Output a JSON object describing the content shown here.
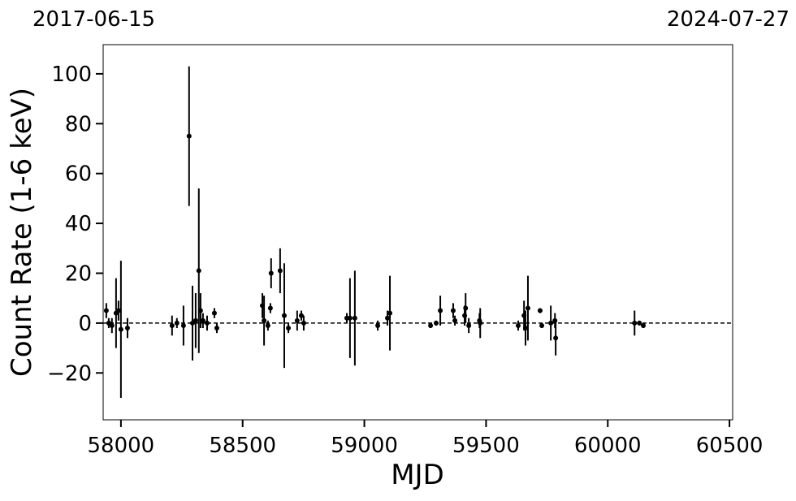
{
  "chart_data": {
    "type": "scatter",
    "top_labels": [
      "2017-06-15",
      "2024-07-27"
    ],
    "xlabel": "MJD",
    "ylabel": "Count Rate (1-6 keV)",
    "color": "#000000",
    "hline": 0,
    "xlim": [
      57927,
      60513
    ],
    "ylim": [
      -38.8,
      111.7
    ],
    "xticks": [
      58000,
      58500,
      59000,
      59500,
      60000,
      60500
    ],
    "yticks": [
      {
        "value": -20,
        "label": "−20"
      },
      0,
      20,
      40,
      60,
      80,
      100
    ],
    "x": [
      57940,
      57950,
      57963,
      57980,
      57990,
      58000,
      58027,
      58210,
      58230,
      58257,
      58280,
      58294,
      58307,
      58320,
      58327,
      58337,
      58354,
      58384,
      58394,
      58581,
      58588,
      58604,
      58614,
      58617,
      58654,
      58671,
      58688,
      58724,
      58741,
      58751,
      58928,
      58941,
      58961,
      59055,
      59095,
      59105,
      59272,
      59295,
      59312,
      59365,
      59372,
      59412,
      59416,
      59429,
      59473,
      59476,
      59632,
      59656,
      59662,
      59672,
      59722,
      59729,
      59766,
      59783,
      59786,
      60110,
      60130,
      60146
    ],
    "values": [
      5,
      0,
      -1,
      4,
      5,
      -2.5,
      -2,
      -1,
      0,
      -1,
      75,
      0,
      1,
      21,
      5,
      1,
      0,
      4,
      -2,
      7,
      1,
      -1,
      6,
      20,
      21,
      3,
      -2,
      1,
      3,
      0,
      2,
      2,
      2,
      -1,
      2,
      4,
      -1,
      0,
      5,
      5,
      1,
      3,
      6,
      -1,
      1,
      0,
      -1,
      3,
      -2,
      6,
      5,
      -1,
      0,
      1,
      -6,
      0,
      0,
      -1
    ],
    "errors": [
      3,
      2,
      3,
      14,
      4,
      27.5,
      4,
      4,
      2,
      8,
      28,
      15,
      11,
      33,
      7,
      3,
      3,
      2,
      2,
      5,
      10,
      2,
      2,
      6,
      9,
      21,
      2,
      4,
      2,
      3,
      2,
      16,
      19,
      2,
      3,
      15,
      1,
      1,
      6,
      3,
      2,
      4,
      6,
      3,
      3,
      6,
      2,
      6,
      7,
      13,
      1,
      1,
      7,
      3,
      7,
      5,
      1,
      1
    ]
  }
}
